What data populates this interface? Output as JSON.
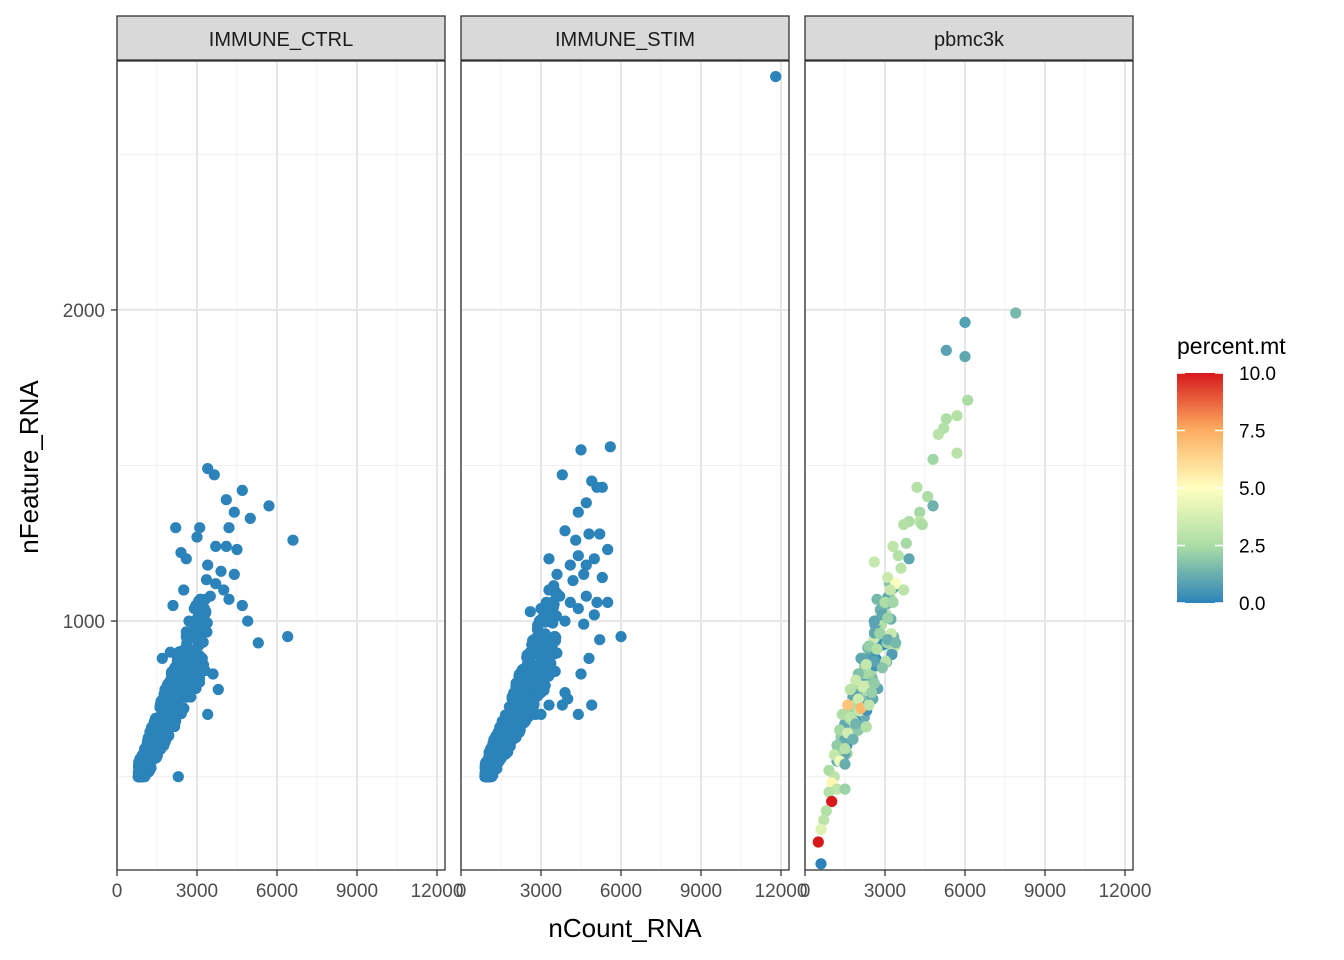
{
  "chart_data": {
    "type": "scatter",
    "xlabel": "nCount_RNA",
    "ylabel": "nFeature_RNA",
    "xlim": [
      0,
      12300
    ],
    "ylim": [
      200,
      2800
    ],
    "x_ticks": [
      0,
      3000,
      6000,
      9000,
      12000
    ],
    "x_tick_labels": [
      "0",
      "3000",
      "6000",
      "9000",
      "12000"
    ],
    "y_ticks": [
      1000,
      2000
    ],
    "y_tick_labels": [
      "1000",
      "2000"
    ],
    "grid": true,
    "legend_position": "right",
    "default_point_color": "#2b83ba",
    "panels": [
      {
        "name": "IMMUNE_CTRL",
        "color_by": "none",
        "points": [
          [
            3400,
            1490
          ],
          [
            3650,
            1470
          ],
          [
            4700,
            1420
          ],
          [
            4100,
            1390
          ],
          [
            5700,
            1370
          ],
          [
            4400,
            1350
          ],
          [
            5000,
            1330
          ],
          [
            2200,
            1300
          ],
          [
            3100,
            1300
          ],
          [
            4200,
            1300
          ],
          [
            3000,
            1270
          ],
          [
            6600,
            1260
          ],
          [
            3700,
            1240
          ],
          [
            4100,
            1240
          ],
          [
            4500,
            1230
          ],
          [
            2400,
            1220
          ],
          [
            2600,
            1200
          ],
          [
            3400,
            1180
          ],
          [
            3900,
            1160
          ],
          [
            4400,
            1150
          ],
          [
            3700,
            1120
          ],
          [
            4000,
            1100
          ],
          [
            2500,
            1100
          ],
          [
            3500,
            1080
          ],
          [
            4200,
            1070
          ],
          [
            2100,
            1050
          ],
          [
            4700,
            1050
          ],
          [
            2900,
            1040
          ],
          [
            3300,
            1030
          ],
          [
            4900,
            1000
          ],
          [
            2700,
            1000
          ],
          [
            5300,
            930
          ],
          [
            6400,
            950
          ],
          [
            3600,
            830
          ],
          [
            1700,
            880
          ],
          [
            3800,
            780
          ],
          [
            3400,
            700
          ],
          [
            2300,
            700
          ],
          [
            2300,
            500
          ],
          [
            1400,
            560
          ],
          [
            2900,
            790
          ],
          [
            3200,
            880
          ],
          [
            2600,
            950
          ],
          [
            2000,
            900
          ],
          [
            1800,
            780
          ]
        ],
        "cluster": {
          "x": [
            800,
            3400
          ],
          "y": [
            500,
            1000
          ],
          "n": 380
        }
      },
      {
        "name": "IMMUNE_STIM",
        "color_by": "none",
        "points": [
          [
            11800,
            2750
          ],
          [
            5600,
            1560
          ],
          [
            4500,
            1550
          ],
          [
            3800,
            1470
          ],
          [
            4900,
            1450
          ],
          [
            5100,
            1430
          ],
          [
            5300,
            1430
          ],
          [
            4700,
            1380
          ],
          [
            4400,
            1350
          ],
          [
            3900,
            1290
          ],
          [
            4800,
            1280
          ],
          [
            5200,
            1280
          ],
          [
            4300,
            1260
          ],
          [
            5500,
            1230
          ],
          [
            4400,
            1210
          ],
          [
            3300,
            1200
          ],
          [
            4100,
            1180
          ],
          [
            4700,
            1180
          ],
          [
            5000,
            1200
          ],
          [
            5300,
            1140
          ],
          [
            4600,
            1150
          ],
          [
            4200,
            1130
          ],
          [
            3600,
            1150
          ],
          [
            3300,
            1100
          ],
          [
            3700,
            1080
          ],
          [
            4700,
            1080
          ],
          [
            5100,
            1060
          ],
          [
            4100,
            1060
          ],
          [
            3200,
            1060
          ],
          [
            5500,
            1060
          ],
          [
            3000,
            1040
          ],
          [
            4400,
            1040
          ],
          [
            5000,
            1020
          ],
          [
            2600,
            1030
          ],
          [
            3900,
            1000
          ],
          [
            4600,
            990
          ],
          [
            6000,
            950
          ],
          [
            5200,
            940
          ],
          [
            4800,
            880
          ],
          [
            4500,
            830
          ],
          [
            3900,
            770
          ],
          [
            4000,
            750
          ],
          [
            4900,
            730
          ],
          [
            3800,
            730
          ],
          [
            4400,
            700
          ],
          [
            3000,
            700
          ],
          [
            3300,
            730
          ],
          [
            2800,
            700
          ]
        ],
        "cluster": {
          "x": [
            900,
            3600
          ],
          "y": [
            500,
            1000
          ],
          "n": 420
        }
      },
      {
        "name": "pbmc3k",
        "color_by": "percent.mt",
        "points": [
          [
            7900,
            1990,
            1.5
          ],
          [
            6000,
            1960,
            0.8
          ],
          [
            5300,
            1870,
            0.9
          ],
          [
            6000,
            1850,
            1.0
          ],
          [
            6100,
            1710,
            2.5
          ],
          [
            5700,
            1660,
            2.8
          ],
          [
            5300,
            1650,
            2.6
          ],
          [
            5000,
            1600,
            3.0
          ],
          [
            5200,
            1620,
            2.7
          ],
          [
            5700,
            1540,
            2.9
          ],
          [
            4800,
            1520,
            2.3
          ],
          [
            4200,
            1430,
            2.8
          ],
          [
            4600,
            1400,
            2.5
          ],
          [
            4800,
            1370,
            1.3
          ],
          [
            4300,
            1350,
            2.4
          ],
          [
            3900,
            1320,
            2.6
          ],
          [
            4300,
            1320,
            3.0
          ],
          [
            3700,
            1310,
            2.8
          ],
          [
            4400,
            1310,
            2.5
          ],
          [
            3800,
            1250,
            2.4
          ],
          [
            3300,
            1240,
            3.1
          ],
          [
            3500,
            1210,
            2.7
          ],
          [
            3900,
            1200,
            1.0
          ],
          [
            2600,
            1190,
            3.3
          ],
          [
            3600,
            1170,
            3.0
          ],
          [
            3100,
            1140,
            3.4
          ],
          [
            3400,
            1120,
            4.8
          ],
          [
            3200,
            1100,
            3.3
          ],
          [
            3700,
            1100,
            3.0
          ],
          [
            2700,
            1070,
            1.5
          ],
          [
            3000,
            1060,
            2.6
          ],
          [
            3300,
            1060,
            2.3
          ],
          [
            2900,
            1020,
            1.0
          ],
          [
            3100,
            1010,
            2.2
          ],
          [
            2600,
            1000,
            0.9
          ],
          [
            2800,
            960,
            2.2
          ],
          [
            3100,
            940,
            1.2
          ],
          [
            3400,
            930,
            1.5
          ],
          [
            2400,
            920,
            2.1
          ],
          [
            2700,
            910,
            2.8
          ],
          [
            2100,
            880,
            1.0
          ],
          [
            2600,
            870,
            0.9
          ],
          [
            2300,
            860,
            3.2
          ],
          [
            2900,
            850,
            1.8
          ],
          [
            2000,
            830,
            1.7
          ],
          [
            1900,
            810,
            3.4
          ],
          [
            2600,
            800,
            2.0
          ],
          [
            2200,
            790,
            3.6
          ],
          [
            1700,
            780,
            2.9
          ],
          [
            2500,
            770,
            2.1
          ],
          [
            2000,
            750,
            3.5
          ],
          [
            1600,
            730,
            6.8
          ],
          [
            2100,
            720,
            7.2
          ],
          [
            2400,
            730,
            3.1
          ],
          [
            1400,
            700,
            2.6
          ],
          [
            1700,
            690,
            3.0
          ],
          [
            1900,
            670,
            1.4
          ],
          [
            2300,
            660,
            2.7
          ],
          [
            1300,
            650,
            2.4
          ],
          [
            1600,
            640,
            3.6
          ],
          [
            1800,
            620,
            1.3
          ],
          [
            1200,
            600,
            2.0
          ],
          [
            1500,
            590,
            2.9
          ],
          [
            1100,
            570,
            3.2
          ],
          [
            1300,
            550,
            4.6
          ],
          [
            1500,
            540,
            1.2
          ],
          [
            900,
            520,
            2.5
          ],
          [
            1100,
            500,
            3.0
          ],
          [
            1000,
            480,
            5.3
          ],
          [
            1200,
            460,
            3.1
          ],
          [
            1500,
            460,
            2.2
          ],
          [
            900,
            450,
            2.8
          ],
          [
            1000,
            420,
            10.0
          ],
          [
            800,
            390,
            2.7
          ],
          [
            700,
            360,
            3.0
          ],
          [
            600,
            330,
            4.0
          ],
          [
            500,
            290,
            10.0
          ],
          [
            600,
            220,
            0.0
          ]
        ],
        "cluster": {
          "x": [
            1200,
            3400
          ],
          "y": [
            550,
            1050
          ],
          "n": 160
        }
      }
    ],
    "color_legend": {
      "title": "percent.mt",
      "min": 0,
      "max": 10,
      "ticks": [
        0,
        2.5,
        5,
        7.5,
        10
      ],
      "tick_labels": [
        "0.0",
        "2.5",
        "5.0",
        "7.5",
        "10.0"
      ],
      "palette": [
        "#2b83ba",
        "#abdda4",
        "#ffffbf",
        "#fdae61",
        "#d7191c"
      ]
    }
  }
}
